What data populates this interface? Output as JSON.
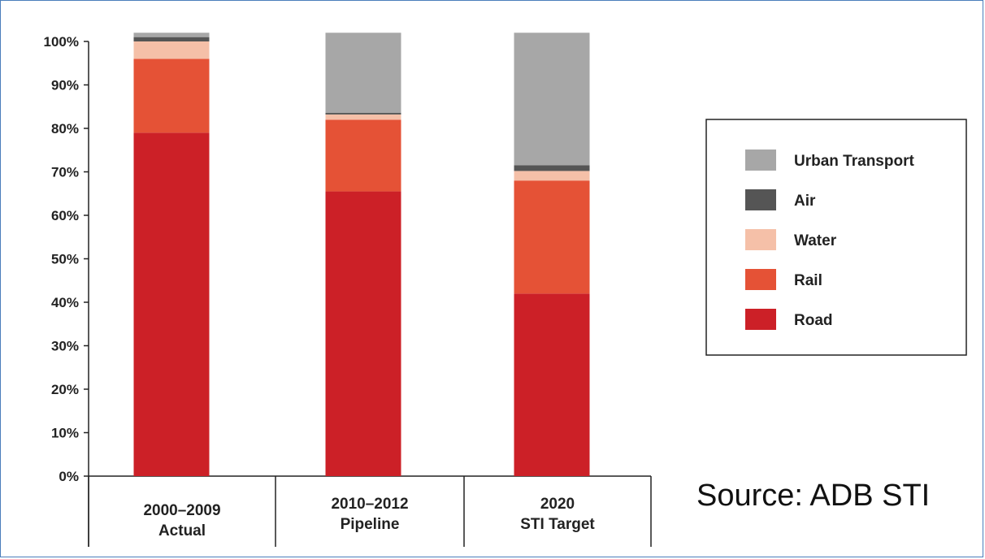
{
  "source_note": "Source: ADB STI",
  "chart_data": {
    "type": "bar",
    "stacked": true,
    "y_unit": "%",
    "ylim": [
      0,
      100
    ],
    "yticks": [
      0,
      10,
      20,
      30,
      40,
      50,
      60,
      70,
      80,
      90,
      100
    ],
    "ytick_labels": [
      "0%",
      "10%",
      "20%",
      "30%",
      "40%",
      "50%",
      "60%",
      "70%",
      "80%",
      "90%",
      "100%"
    ],
    "categories": [
      [
        "2000–2009",
        "Actual"
      ],
      [
        "2010–2012",
        "Pipeline"
      ],
      [
        "2020",
        "STI Target"
      ]
    ],
    "series": [
      {
        "name": "Road",
        "color": "#cc2027",
        "values": [
          79,
          65.5,
          42
        ]
      },
      {
        "name": "Rail",
        "color": "#e55236",
        "values": [
          17,
          16.5,
          26
        ]
      },
      {
        "name": "Water",
        "color": "#f5c0a8",
        "values": [
          4,
          1.2,
          2.2
        ]
      },
      {
        "name": "Air",
        "color": "#555555",
        "values": [
          1,
          0.4,
          1.3
        ]
      },
      {
        "name": "Urban Transport",
        "color": "#a7a7a7",
        "values": [
          1,
          18.4,
          30.5
        ]
      }
    ],
    "legend_order": [
      "Urban Transport",
      "Air",
      "Water",
      "Rail",
      "Road"
    ],
    "legend_position": "right",
    "grid": false
  }
}
